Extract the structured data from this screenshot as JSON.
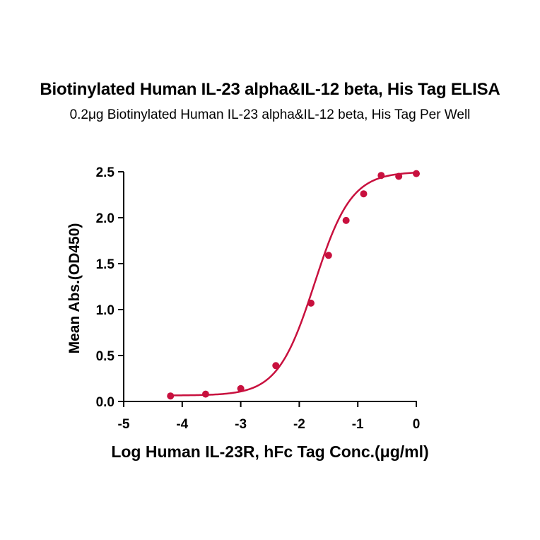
{
  "chart_data": {
    "type": "scatter",
    "title": "Biotinylated Human IL-23 alpha&IL-12 beta, His Tag ELISA",
    "subtitle": "0.2μg Biotinylated Human IL-23 alpha&IL-12 beta, His Tag Per Well",
    "xlabel": "Log Human IL-23R, hFc Tag Conc.(μg/ml)",
    "ylabel": "Mean Abs.(OD450)",
    "xlim": [
      -5,
      0
    ],
    "ylim": [
      0,
      2.5
    ],
    "xticks": [
      "-5",
      "-4",
      "-3",
      "-2",
      "-1",
      "0"
    ],
    "yticks": [
      "0.0",
      "0.5",
      "1.0",
      "1.5",
      "2.0",
      "2.5"
    ],
    "grid": false,
    "colors": {
      "series": "#c8103e"
    },
    "series": [
      {
        "x": [
          -4.2,
          -3.6,
          -3.0,
          -2.4,
          -1.8,
          -1.5,
          -1.2,
          -0.9,
          -0.6,
          -0.3,
          0.0
        ],
        "y": [
          0.06,
          0.08,
          0.14,
          0.39,
          1.07,
          1.59,
          1.97,
          2.26,
          2.46,
          2.45,
          2.48
        ],
        "fit": "four-parameter logistic curve"
      }
    ]
  }
}
